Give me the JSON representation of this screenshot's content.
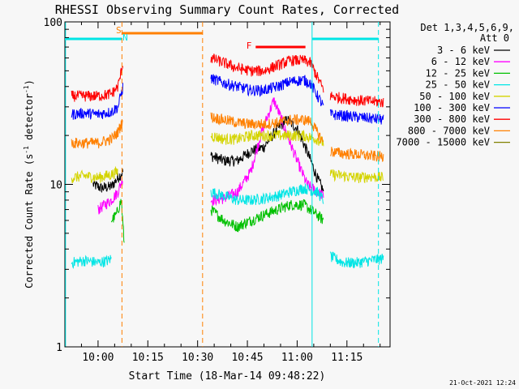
{
  "chart_data": {
    "type": "line",
    "title": "RHESSI Observing Summary Count Rates, Corrected",
    "xlabel": "Start Time (18-Mar-14 09:48:22)",
    "ylabel_main": "Corrected Count Rate (s",
    "ylabel_sup1": "-1",
    "ylabel_mid": " detector",
    "ylabel_sup2": "-1",
    "ylabel_end": ")",
    "x_units": "minutes",
    "xlim": [
      "09:50",
      "10:30",
      "11:30"
    ],
    "x_range_minutes": [
      590,
      688
    ],
    "y_scale": "log",
    "ylim": [
      1,
      100
    ],
    "y_tick_labels": [
      "1",
      "10",
      "100"
    ],
    "x_tick_labels": [
      "10:00",
      "10:15",
      "10:30",
      "10:45",
      "11:00",
      "11:15"
    ],
    "x_tick_minutes": [
      600,
      615,
      630,
      645,
      660,
      675
    ],
    "legend_header": [
      "Det 1,3,4,5,6,9,",
      "Att 0"
    ],
    "footer_date": "21-Oct-2021 12:24",
    "annotations": [
      {
        "text": "S",
        "color": "#ff8000",
        "x_minute": 606.2
      },
      {
        "text": "N",
        "color": "#00e5e5",
        "x_minute": 608.2
      },
      {
        "text": "F",
        "color": "#ff0000",
        "x_minute": 645.5
      }
    ],
    "night_bars": [
      {
        "x_minutes": [
          590,
          607.2
        ],
        "color": "#00e5e5"
      },
      {
        "x_minutes": [
          664.5,
          684.5
        ],
        "color": "#00e5e5"
      }
    ],
    "saa_bar": {
      "x_minutes": [
        607.2,
        631.5
      ],
      "color": "#ff8000"
    },
    "flare_bar": {
      "x_minutes": [
        647.5,
        662.5
      ],
      "color": "#ff0000"
    },
    "vertical_lines": [
      {
        "x_minute": 607.2,
        "color": "#ff8000",
        "dash": true
      },
      {
        "x_minute": 631.5,
        "color": "#ff8000",
        "dash": true
      },
      {
        "x_minute": 664.5,
        "color": "#00e5e5",
        "dash": false
      },
      {
        "x_minute": 684.5,
        "color": "#00e5e5",
        "dash": true
      },
      {
        "x_minute": 590.2,
        "color": "#00e5e5",
        "dash": false
      }
    ],
    "series": [
      {
        "name": "3 - 6 keV",
        "color": "#000000",
        "seg1": [
          [
            598.5,
            10
          ],
          [
            601,
            9.5
          ],
          [
            604,
            9.7
          ],
          [
            606,
            11
          ],
          [
            607.5,
            12
          ]
        ],
        "seg2": [
          [
            634,
            15
          ],
          [
            638,
            14
          ],
          [
            642,
            14
          ],
          [
            646,
            16
          ],
          [
            650,
            17
          ],
          [
            654,
            22
          ],
          [
            657,
            25
          ],
          [
            660,
            22
          ],
          [
            663,
            16
          ],
          [
            666,
            11
          ],
          [
            668,
            9
          ]
        ],
        "seg3": []
      },
      {
        "name": "6 - 12 keV",
        "color": "#ff00ff",
        "seg1": [
          [
            600,
            7
          ],
          [
            602,
            7.5
          ],
          [
            604,
            8
          ],
          [
            606,
            9
          ],
          [
            607.5,
            11
          ]
        ],
        "seg2": [
          [
            634,
            8
          ],
          [
            638,
            8.2
          ],
          [
            642,
            9
          ],
          [
            646,
            12
          ],
          [
            649,
            20
          ],
          [
            651,
            26
          ],
          [
            653,
            33
          ],
          [
            655,
            26
          ],
          [
            657,
            20
          ],
          [
            660,
            14
          ],
          [
            663,
            10
          ],
          [
            666,
            9
          ],
          [
            668,
            8.5
          ]
        ],
        "seg3": []
      },
      {
        "name": "12 - 25 keV",
        "color": "#00c000",
        "seg1": [
          [
            604,
            6
          ],
          [
            605.5,
            6.5
          ],
          [
            607,
            8
          ],
          [
            608,
            4
          ]
        ],
        "seg2": [
          [
            634,
            7
          ],
          [
            638,
            6
          ],
          [
            642,
            5.5
          ],
          [
            646,
            6
          ],
          [
            650,
            6.5
          ],
          [
            654,
            7
          ],
          [
            658,
            7.5
          ],
          [
            662,
            7.5
          ],
          [
            666,
            6.5
          ],
          [
            668,
            6
          ]
        ],
        "seg3": []
      },
      {
        "name": "25 - 50 keV",
        "color": "#00e5e5",
        "seg1": [
          [
            592,
            3.3
          ],
          [
            596,
            3.4
          ],
          [
            600,
            3.3
          ],
          [
            603,
            3.4
          ],
          [
            604,
            3.5
          ]
        ],
        "seg2": [
          [
            634,
            9
          ],
          [
            638,
            8.5
          ],
          [
            642,
            8
          ],
          [
            646,
            8
          ],
          [
            650,
            8.2
          ],
          [
            654,
            8.5
          ],
          [
            658,
            9
          ],
          [
            662,
            9.5
          ],
          [
            666,
            9
          ],
          [
            668,
            8
          ]
        ],
        "seg3": [
          [
            670,
            3.6
          ],
          [
            674,
            3.3
          ],
          [
            678,
            3.3
          ],
          [
            682,
            3.4
          ],
          [
            686,
            3.5
          ]
        ]
      },
      {
        "name": "50 - 100 keV",
        "color": "#d4d400",
        "seg1": [
          [
            592,
            11
          ],
          [
            596,
            11.3
          ],
          [
            600,
            11
          ],
          [
            604,
            11.5
          ],
          [
            606,
            12
          ]
        ],
        "seg2": [
          [
            634,
            20
          ],
          [
            638,
            19
          ],
          [
            642,
            19
          ],
          [
            646,
            20
          ],
          [
            650,
            20
          ],
          [
            654,
            20
          ],
          [
            658,
            20
          ],
          [
            662,
            20
          ],
          [
            666,
            19
          ],
          [
            668,
            18
          ]
        ],
        "seg3": [
          [
            670,
            11.5
          ],
          [
            674,
            11.3
          ],
          [
            678,
            11
          ],
          [
            682,
            11.2
          ],
          [
            686,
            11
          ]
        ]
      },
      {
        "name": "100 - 300 keV",
        "color": "#0000ff",
        "seg1": [
          [
            592,
            27
          ],
          [
            596,
            27.5
          ],
          [
            600,
            27
          ],
          [
            604,
            28
          ],
          [
            606,
            30
          ],
          [
            607.5,
            40
          ]
        ],
        "seg2": [
          [
            634,
            45
          ],
          [
            638,
            42
          ],
          [
            642,
            40
          ],
          [
            646,
            38
          ],
          [
            650,
            38
          ],
          [
            654,
            40
          ],
          [
            658,
            43
          ],
          [
            662,
            44
          ],
          [
            664,
            42
          ],
          [
            668,
            30
          ]
        ],
        "seg3": [
          [
            670,
            27
          ],
          [
            674,
            26.5
          ],
          [
            678,
            26
          ],
          [
            682,
            25.5
          ],
          [
            686,
            25
          ]
        ]
      },
      {
        "name": "300 - 800 keV",
        "color": "#ff0000",
        "seg1": [
          [
            592,
            35
          ],
          [
            596,
            35
          ],
          [
            600,
            35
          ],
          [
            604,
            36
          ],
          [
            606,
            40
          ],
          [
            607.5,
            55
          ]
        ],
        "seg2": [
          [
            634,
            60
          ],
          [
            638,
            56
          ],
          [
            642,
            52
          ],
          [
            646,
            50
          ],
          [
            650,
            50
          ],
          [
            654,
            54
          ],
          [
            658,
            58
          ],
          [
            662,
            58
          ],
          [
            664,
            56
          ],
          [
            668,
            38
          ]
        ],
        "seg3": [
          [
            670,
            35
          ],
          [
            674,
            34
          ],
          [
            678,
            33
          ],
          [
            682,
            32.5
          ],
          [
            686,
            32
          ]
        ]
      },
      {
        "name": "800 - 7000 keV",
        "color": "#ff8000",
        "seg1": [
          [
            592,
            18
          ],
          [
            596,
            18
          ],
          [
            600,
            18
          ],
          [
            604,
            19
          ],
          [
            606,
            21
          ],
          [
            607.5,
            25
          ]
        ],
        "seg2": [
          [
            634,
            26
          ],
          [
            638,
            25
          ],
          [
            642,
            24
          ],
          [
            646,
            23.5
          ],
          [
            650,
            23.5
          ],
          [
            654,
            24
          ],
          [
            658,
            25
          ],
          [
            662,
            25
          ],
          [
            664,
            24.5
          ],
          [
            668,
            18
          ]
        ],
        "seg3": [
          [
            670,
            16
          ],
          [
            674,
            15.5
          ],
          [
            678,
            15.3
          ],
          [
            682,
            15
          ],
          [
            686,
            14.8
          ]
        ]
      },
      {
        "name": "7000 - 15000 keV",
        "color": "#808000",
        "seg1": [],
        "seg2": [],
        "seg3": []
      }
    ]
  }
}
